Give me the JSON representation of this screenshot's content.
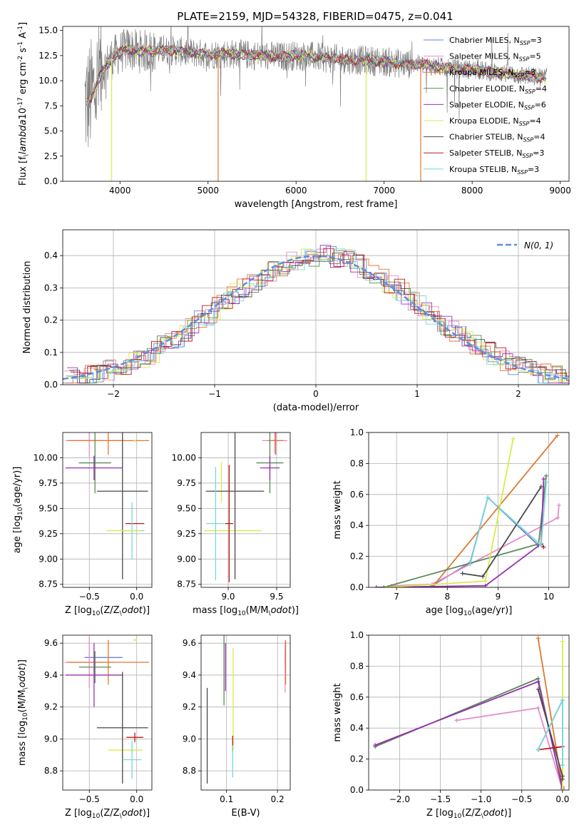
{
  "title": "PLATE=2159, MJD=54328, FIBERID=0475, z=0.041",
  "colors": {
    "Chabrier MILES": "#6f7fd6",
    "Salpeter MILES": "#e58cc7",
    "Kroupa MILES": "#e07830",
    "Chabrier ELODIE": "#5a8a5a",
    "Salpeter ELODIE": "#9a2fb2",
    "Kroupa ELODIE": "#d8ec48",
    "Chabrier STELIB": "#4a4a4a",
    "Salpeter STELIB": "#c01818",
    "Kroupa STELIB": "#78d8dc",
    "data": "#808080",
    "normal": "#5a8fdc"
  },
  "chart_data": [
    {
      "id": "spectrum",
      "type": "line",
      "xlabel": "wavelength [Angstrom, rest frame]",
      "ylabel": "Flux [f$_\\lambda$10$^{-17}$ erg cm$^{-2}$ s$^{-1}$ A$^{-1}$]",
      "xlim": [
        3350,
        9100
      ],
      "ylim": [
        0,
        15.4
      ],
      "xticks": [
        4000,
        5000,
        6000,
        7000,
        8000,
        9000
      ],
      "yticks": [
        0.0,
        2.5,
        5.0,
        7.5,
        10.0,
        12.5,
        15.0
      ],
      "grid": false,
      "legend_position": "upper-right",
      "legend": [
        {
          "model": "Chabrier MILES",
          "label": "Chabrier MILES, N",
          "sub": "SSP",
          "tail": "=3"
        },
        {
          "model": "Salpeter MILES",
          "label": "Salpeter MILES, N",
          "sub": "SSP",
          "tail": "=5"
        },
        {
          "model": "Kroupa MILES",
          "label": "Kroupa MILES, N",
          "sub": "SSP",
          "tail": "=3"
        },
        {
          "model": "Chabrier ELODIE",
          "label": "Chabrier ELODIE, N",
          "sub": "SSP",
          "tail": "=4"
        },
        {
          "model": "Salpeter ELODIE",
          "label": "Salpeter ELODIE, N",
          "sub": "SSP",
          "tail": "=6"
        },
        {
          "model": "Kroupa ELODIE",
          "label": "Kroupa ELODIE, N",
          "sub": "SSP",
          "tail": "=4"
        },
        {
          "model": "Chabrier STELIB",
          "label": "Chabrier STELIB, N",
          "sub": "SSP",
          "tail": "=4"
        },
        {
          "model": "Salpeter STELIB",
          "label": "Salpeter STELIB, N",
          "sub": "SSP",
          "tail": "=3"
        },
        {
          "model": "Kroupa STELIB",
          "label": "Kroupa STELIB, N",
          "sub": "SSP",
          "tail": "=3"
        }
      ],
      "continuum": {
        "x": [
          3620,
          3700,
          3800,
          3900,
          4000,
          4100,
          4200,
          4400,
          4600,
          4800,
          5000,
          5200,
          5400,
          5600,
          5800,
          6000,
          6200,
          6400,
          6600,
          6800,
          7000,
          7200,
          7400,
          7600,
          7800,
          8000,
          8200,
          8400,
          8600,
          8800
        ],
        "y": [
          7.8,
          8.8,
          11.0,
          12.2,
          12.8,
          13.2,
          12.9,
          13.0,
          13.0,
          12.8,
          12.6,
          12.7,
          12.6,
          12.5,
          12.4,
          12.5,
          12.4,
          12.2,
          12.1,
          12.0,
          11.9,
          11.7,
          11.6,
          11.4,
          11.2,
          11.1,
          10.9,
          10.7,
          10.5,
          10.3
        ]
      },
      "drops": [
        {
          "model": "Kroupa ELODIE",
          "x": 3905
        },
        {
          "model": "Kroupa MILES",
          "x": 5115
        },
        {
          "model": "Kroupa ELODIE",
          "x": 6795
        },
        {
          "model": "Kroupa MILES",
          "x": 7415
        }
      ]
    },
    {
      "id": "residuals",
      "type": "histogram",
      "xlabel": "(data-model)/error",
      "ylabel": "Normed distribution",
      "xlim": [
        -2.5,
        2.5
      ],
      "ylim": [
        0,
        0.48
      ],
      "xticks": [
        -2,
        -1,
        0,
        1,
        2
      ],
      "yticks": [
        0.0,
        0.1,
        0.2,
        0.3,
        0.4
      ],
      "grid": true,
      "bin_width": 0.1,
      "legend": "$\\mathcal{N}(0, 1)$",
      "legend_position": "upper-right"
    },
    {
      "id": "age-Z",
      "type": "errorbar",
      "xlabel": "Z [log$_{10}$(Z/Z$_\\odot$)]",
      "ylabel": "age  [log$_{10}$(age/yr)]",
      "xlim": [
        -0.78,
        0.16
      ],
      "ylim": [
        8.72,
        10.25
      ],
      "xticks": [
        -0.5,
        0.0
      ],
      "yticks": [
        8.75,
        9.0,
        9.25,
        9.5,
        9.75,
        10.0
      ],
      "grid": true,
      "points": [
        {
          "model": "Chabrier MILES",
          "x": -0.42,
          "y": 10.17,
          "xerr": 0.3,
          "yerr": 0.0
        },
        {
          "model": "Salpeter MILES",
          "x": -0.5,
          "y": 10.17,
          "xerr": 0.25,
          "yerr": 0.16
        },
        {
          "model": "Kroupa MILES",
          "x": -0.3,
          "y": 10.17,
          "xerr": 0.43,
          "yerr": 0.14
        },
        {
          "model": "Chabrier ELODIE",
          "x": -0.44,
          "y": 9.95,
          "xerr": 0.17,
          "yerr": 0.3
        },
        {
          "model": "Salpeter ELODIE",
          "x": -0.45,
          "y": 9.9,
          "xerr": 0.3,
          "yerr": 0.12
        },
        {
          "model": "Kroupa ELODIE",
          "x": -0.02,
          "y": 10.17,
          "xerr": 0.0,
          "yerr": 0.0
        },
        {
          "model": "Chabrier STELIB",
          "x": -0.15,
          "y": 9.67,
          "xerr": 0.27,
          "yerr": 0.87
        },
        {
          "model": "Salpeter STELIB",
          "x": -0.02,
          "y": 9.35,
          "xerr": 0.1,
          "yerr": 0.0
        },
        {
          "model": "Kroupa STELIB",
          "x": -0.05,
          "y": 9.28,
          "xerr": 0.13,
          "yerr": 0.28
        },
        {
          "model": "Kroupa ELODIE",
          "x": -0.14,
          "y": 9.28,
          "xerr": 0.18,
          "yerr": 0.0
        }
      ]
    },
    {
      "id": "age-mass",
      "type": "errorbar",
      "xlabel": "mass [log$_{10}$(M/M$_\\odot$)]",
      "ylabel": "",
      "xlim": [
        8.72,
        9.64
      ],
      "ylim": [
        8.72,
        10.25
      ],
      "xticks": [
        9.0,
        9.5
      ],
      "yticks": [
        8.75,
        9.0,
        9.25,
        9.5,
        9.75,
        10.0
      ],
      "grid": true,
      "points": [
        {
          "model": "Chabrier MILES",
          "x": 9.5,
          "y": 10.17,
          "xerr": 0.05,
          "yerr": 0.0
        },
        {
          "model": "Salpeter MILES",
          "x": 9.48,
          "y": 10.17,
          "xerr": 0.13,
          "yerr": 0.13
        },
        {
          "model": "Kroupa MILES",
          "x": 9.49,
          "y": 10.17,
          "xerr": 0.08,
          "yerr": 0.14
        },
        {
          "model": "Chabrier ELODIE",
          "x": 9.43,
          "y": 9.95,
          "xerr": 0.14,
          "yerr": 0.3
        },
        {
          "model": "Salpeter ELODIE",
          "x": 9.43,
          "y": 9.9,
          "xerr": 0.1,
          "yerr": 0.12
        },
        {
          "model": "Kroupa ELODIE",
          "x": 8.93,
          "y": 9.76,
          "xerr": 0.0,
          "yerr": 0.2
        },
        {
          "model": "Kroupa ELODIE",
          "x": 9.05,
          "y": 9.28,
          "xerr": 0.3,
          "yerr": 0.0
        },
        {
          "model": "Chabrier STELIB",
          "x": 9.07,
          "y": 9.67,
          "xerr": 0.3,
          "yerr": 0.87
        },
        {
          "model": "Salpeter STELIB",
          "x": 9.01,
          "y": 9.35,
          "xerr": 0.04,
          "yerr": 0.58
        },
        {
          "model": "Kroupa STELIB",
          "x": 8.87,
          "y": 9.35,
          "xerr": 0.1,
          "yerr": 0.56
        }
      ]
    },
    {
      "id": "weight-age",
      "type": "line",
      "xlabel": "age  [log$_{10}$(age/yr)]",
      "ylabel": "mass weight",
      "xlim": [
        6.45,
        10.4
      ],
      "ylim": [
        0,
        1
      ],
      "xticks": [
        7,
        8,
        9,
        10
      ],
      "yticks": [
        0.0,
        0.2,
        0.4,
        0.6,
        0.8,
        1.0
      ],
      "grid": true,
      "series": [
        {
          "model": "Chabrier MILES",
          "x": [
            7.7,
            8.45,
            8.8,
            9.8
          ],
          "y": [
            0.01,
            0.16,
            0.58,
            0.27
          ]
        },
        {
          "model": "Salpeter MILES",
          "x": [
            6.9,
            7.7,
            10.18,
            10.2
          ],
          "y": [
            0.01,
            0.02,
            0.45,
            0.53
          ]
        },
        {
          "model": "Kroupa MILES",
          "x": [
            7.75,
            10.17
          ],
          "y": [
            0.02,
            0.98
          ]
        },
        {
          "model": "Chabrier ELODIE",
          "x": [
            6.75,
            9.8,
            9.95
          ],
          "y": [
            0.0,
            0.28,
            0.72
          ]
        },
        {
          "model": "Salpeter ELODIE",
          "x": [
            6.6,
            8.75,
            9.85,
            9.9
          ],
          "y": [
            0.0,
            0.01,
            0.28,
            0.7
          ]
        },
        {
          "model": "Kroupa ELODIE",
          "x": [
            6.8,
            8.75,
            9.3
          ],
          "y": [
            0.0,
            0.04,
            0.96
          ]
        },
        {
          "model": "Chabrier STELIB",
          "x": [
            8.3,
            8.7,
            9.85
          ],
          "y": [
            0.09,
            0.07,
            0.65
          ]
        },
        {
          "model": "Salpeter STELIB",
          "x": [
            9.85,
            9.9
          ],
          "y": [
            0.28,
            0.26
          ]
        },
        {
          "model": "Kroupa STELIB",
          "x": [
            8.45,
            8.8,
            9.85,
            9.95
          ],
          "y": [
            0.15,
            0.58,
            0.27,
            0.68
          ]
        }
      ]
    },
    {
      "id": "mass-Z",
      "type": "errorbar",
      "xlabel": "Z [log$_{10}$(Z/Z$_\\odot$)]",
      "ylabel": "mass [log$_{10}$(M/M$_\\odot$)]",
      "xlim": [
        -0.78,
        0.16
      ],
      "ylim": [
        8.68,
        9.65
      ],
      "xticks": [
        -0.5,
        0.0
      ],
      "yticks": [
        8.8,
        9.0,
        9.2,
        9.4,
        9.6
      ],
      "grid": true,
      "points": [
        {
          "model": "Chabrier MILES",
          "x": -0.35,
          "y": 9.51,
          "xerr": 0.2,
          "yerr": 0.0
        },
        {
          "model": "Salpeter MILES",
          "x": -0.5,
          "y": 9.48,
          "xerr": 0.26,
          "yerr": 0.16
        },
        {
          "model": "Kroupa MILES",
          "x": -0.3,
          "y": 9.48,
          "xerr": 0.43,
          "yerr": 0.14
        },
        {
          "model": "Chabrier ELODIE",
          "x": -0.44,
          "y": 9.45,
          "xerr": 0.17,
          "yerr": 0.1
        },
        {
          "model": "Salpeter ELODIE",
          "x": -0.45,
          "y": 9.4,
          "xerr": 0.3,
          "yerr": 0.2
        },
        {
          "model": "Kroupa ELODIE",
          "x": -0.02,
          "y": 9.62,
          "xerr": 0.0,
          "yerr": 0.0
        },
        {
          "model": "Kroupa ELODIE",
          "x": -0.12,
          "y": 8.93,
          "xerr": 0.18,
          "yerr": 0.0
        },
        {
          "model": "Chabrier STELIB",
          "x": -0.15,
          "y": 9.07,
          "xerr": 0.27,
          "yerr": 0.35
        },
        {
          "model": "Salpeter STELIB",
          "x": -0.02,
          "y": 9.01,
          "xerr": 0.09,
          "yerr": 0.03
        },
        {
          "model": "Kroupa STELIB",
          "x": -0.05,
          "y": 8.87,
          "xerr": 0.1,
          "yerr": 0.12
        }
      ]
    },
    {
      "id": "mass-ebv",
      "type": "errorbar",
      "xlabel": "E(B-V)",
      "ylabel": "",
      "xlim": [
        0.05,
        0.225
      ],
      "ylim": [
        8.68,
        9.65
      ],
      "xticks": [
        0.1,
        0.2
      ],
      "yticks": [
        8.8,
        9.0,
        9.2,
        9.4,
        9.6
      ],
      "grid": true,
      "points": [
        {
          "model": "Chabrier MILES",
          "x": 0.215,
          "y": 9.51,
          "xerr": 0.0,
          "yerr": 0.05
        },
        {
          "model": "Salpeter MILES",
          "x": 0.215,
          "y": 9.45,
          "xerr": 0.0,
          "yerr": 0.16
        },
        {
          "model": "Kroupa MILES",
          "x": 0.216,
          "y": 9.48,
          "xerr": 0.0,
          "yerr": 0.14
        },
        {
          "model": "Chabrier ELODIE",
          "x": 0.095,
          "y": 9.45,
          "xerr": 0.0,
          "yerr": 0.24
        },
        {
          "model": "Salpeter ELODIE",
          "x": 0.098,
          "y": 9.45,
          "xerr": 0.0,
          "yerr": 0.15
        },
        {
          "model": "Kroupa ELODIE",
          "x": 0.113,
          "y": 9.25,
          "xerr": 0.0,
          "yerr": 0.32
        },
        {
          "model": "Chabrier STELIB",
          "x": 0.062,
          "y": 9.02,
          "xerr": 0.0,
          "yerr": 0.3
        },
        {
          "model": "Salpeter STELIB",
          "x": 0.112,
          "y": 8.97,
          "xerr": 0.0,
          "yerr": 0.05
        },
        {
          "model": "Kroupa STELIB",
          "x": 0.112,
          "y": 8.86,
          "xerr": 0.0,
          "yerr": 0.1
        }
      ]
    },
    {
      "id": "weight-Z",
      "type": "line",
      "xlabel": "Z [log$_{10}$(Z/Z$_\\odot$)]",
      "ylabel": "mass weight",
      "xlim": [
        -2.38,
        0.08
      ],
      "ylim": [
        0,
        1
      ],
      "xticks": [
        -2.0,
        -1.5,
        -1.0,
        -0.5,
        0.0
      ],
      "yticks": [
        0.0,
        0.2,
        0.4,
        0.6,
        0.8,
        1.0
      ],
      "grid": true,
      "series": [
        {
          "model": "Chabrier MILES",
          "x": [
            -0.3,
            0.0,
            0.0
          ],
          "y": [
            0.26,
            0.58,
            0.16
          ]
        },
        {
          "model": "Salpeter MILES",
          "x": [
            -1.3,
            -0.3,
            0.0,
            0.0
          ],
          "y": [
            0.45,
            0.53,
            0.0,
            0.02
          ]
        },
        {
          "model": "Kroupa MILES",
          "x": [
            -0.3,
            0.0
          ],
          "y": [
            0.98,
            0.02
          ]
        },
        {
          "model": "Chabrier ELODIE",
          "x": [
            -2.3,
            -0.3,
            0.0
          ],
          "y": [
            0.28,
            0.72,
            0.0
          ]
        },
        {
          "model": "Salpeter ELODIE",
          "x": [
            -2.3,
            -0.3,
            0.0
          ],
          "y": [
            0.29,
            0.7,
            0.01
          ]
        },
        {
          "model": "Kroupa ELODIE",
          "x": [
            0.0,
            0.0
          ],
          "y": [
            0.96,
            0.0
          ]
        },
        {
          "model": "Chabrier STELIB",
          "x": [
            -0.3,
            0.0,
            0.0
          ],
          "y": [
            0.65,
            0.09,
            0.07
          ]
        },
        {
          "model": "Salpeter STELIB",
          "x": [
            -0.3,
            0.0
          ],
          "y": [
            0.26,
            0.28
          ]
        },
        {
          "model": "Kroupa STELIB",
          "x": [
            -0.3,
            0.0,
            0.0
          ],
          "y": [
            0.26,
            0.58,
            0.16
          ]
        }
      ]
    }
  ]
}
